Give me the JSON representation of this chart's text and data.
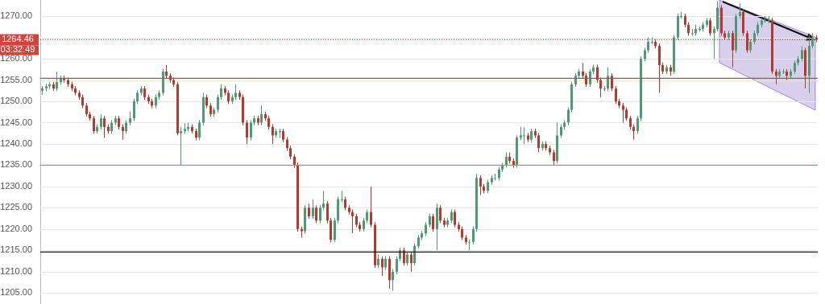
{
  "chart_data": {
    "type": "candlestick",
    "categories": [
      null,
      null,
      null,
      null,
      null,
      null,
      null,
      null,
      null,
      null,
      null,
      null,
      null,
      null,
      null,
      null,
      null,
      null,
      null,
      null,
      null,
      null,
      null,
      null,
      null,
      null,
      null,
      null,
      null,
      null,
      null,
      null,
      null,
      null,
      null,
      null,
      null,
      null,
      null,
      null,
      null,
      null,
      null,
      null,
      null,
      null,
      null,
      null,
      null,
      null,
      null,
      null,
      null,
      null,
      null,
      null,
      null,
      null,
      null,
      null,
      null,
      null,
      null,
      null,
      null,
      null,
      null,
      null,
      null,
      null,
      null,
      null,
      null,
      null,
      null,
      null,
      null,
      null,
      null,
      null,
      null,
      null,
      null,
      null,
      null,
      null,
      null,
      null,
      null,
      null,
      null,
      null,
      null,
      null,
      null,
      null,
      null,
      null,
      null,
      null,
      null,
      null,
      null,
      null,
      null,
      null,
      null,
      null,
      null,
      null,
      null,
      null,
      null,
      null,
      null,
      null,
      null,
      null,
      null,
      null,
      null,
      null,
      null,
      null,
      null,
      null,
      null,
      null,
      null,
      null,
      null,
      null,
      null,
      null,
      null,
      null,
      null,
      null,
      null,
      null,
      null,
      null,
      null,
      null,
      null,
      null,
      null,
      null,
      null,
      null,
      null,
      null,
      null,
      null,
      null,
      null,
      null,
      null,
      null,
      null,
      null,
      null,
      null,
      null,
      null,
      null,
      null,
      null,
      null,
      null,
      null,
      null,
      null,
      null,
      null,
      null,
      null,
      null,
      null,
      null,
      null,
      null,
      null,
      null,
      null,
      null,
      null,
      null,
      null,
      null,
      null,
      null,
      null,
      null,
      null,
      null,
      null,
      null,
      null,
      null,
      null,
      null,
      null,
      null,
      null,
      null,
      null,
      null,
      null,
      null,
      null,
      null,
      null
    ],
    "ohlc": [
      [
        1252.5,
        1253.6,
        1251.5,
        1253
      ],
      [
        1253,
        1254.1,
        1252.4,
        1253.5
      ],
      [
        1253.5,
        1254.6,
        1252.9,
        1254
      ],
      [
        1254,
        1254.6,
        1252.4,
        1253
      ],
      [
        1253,
        1257,
        1252.4,
        1254.5
      ],
      [
        1254.5,
        1256.1,
        1253.9,
        1255.5
      ],
      [
        1255.5,
        1256.1,
        1254.4,
        1255
      ],
      [
        1255,
        1255.6,
        1253.4,
        1254
      ],
      [
        1254,
        1254.6,
        1252.4,
        1253
      ],
      [
        1253,
        1253.6,
        1251.4,
        1252
      ],
      [
        1252,
        1252.6,
        1250.4,
        1251
      ],
      [
        1251,
        1251.6,
        1248.4,
        1249
      ],
      [
        1249,
        1249.6,
        1246.4,
        1247
      ],
      [
        1247,
        1247.6,
        1245.4,
        1246
      ],
      [
        1246,
        1246.6,
        1242.4,
        1243
      ],
      [
        1243,
        1244.6,
        1242.4,
        1244
      ],
      [
        1244,
        1247,
        1243.4,
        1246
      ],
      [
        1246,
        1246.6,
        1241.4,
        1244
      ],
      [
        1244,
        1244.6,
        1242.4,
        1243
      ],
      [
        1243,
        1245.6,
        1242.4,
        1245
      ],
      [
        1245,
        1246.6,
        1244.4,
        1246
      ],
      [
        1246,
        1246.6,
        1243.4,
        1244
      ],
      [
        1244,
        1244.6,
        1241,
        1243
      ],
      [
        1243,
        1245.6,
        1242.4,
        1245
      ],
      [
        1245,
        1247.6,
        1244.4,
        1246
      ],
      [
        1246,
        1250.6,
        1245.4,
        1250
      ],
      [
        1250,
        1252.6,
        1249.4,
        1252
      ],
      [
        1252,
        1253.6,
        1251.4,
        1253
      ],
      [
        1253,
        1253.6,
        1250.4,
        1251
      ],
      [
        1251,
        1251.6,
        1249.4,
        1250
      ],
      [
        1250,
        1250.6,
        1248.4,
        1249
      ],
      [
        1249,
        1251.6,
        1248.4,
        1251
      ],
      [
        1251,
        1252.6,
        1250.4,
        1252
      ],
      [
        1252,
        1257.6,
        1251.4,
        1257
      ],
      [
        1257,
        1258.5,
        1255.4,
        1256
      ],
      [
        1256,
        1256.6,
        1254.4,
        1255
      ],
      [
        1255,
        1255.6,
        1253.4,
        1254
      ],
      [
        1254,
        1254.6,
        1242,
        1242.5
      ],
      [
        1242.5,
        1244,
        1235,
        1243
      ],
      [
        1243,
        1244.8,
        1242.4,
        1243.5
      ],
      [
        1243.5,
        1245,
        1242.9,
        1244
      ],
      [
        1244,
        1244.6,
        1242.4,
        1243
      ],
      [
        1243,
        1243.6,
        1240.9,
        1241.5
      ],
      [
        1241.5,
        1245.6,
        1240.9,
        1245
      ],
      [
        1245,
        1252,
        1244.4,
        1251
      ],
      [
        1251,
        1251.6,
        1248.4,
        1249
      ],
      [
        1249,
        1249.6,
        1246.4,
        1247
      ],
      [
        1247,
        1248.6,
        1246.4,
        1248
      ],
      [
        1248,
        1251.6,
        1247.4,
        1251
      ],
      [
        1251,
        1254,
        1250.4,
        1253
      ],
      [
        1253,
        1253.6,
        1251.4,
        1252
      ],
      [
        1252,
        1252.6,
        1249.4,
        1250
      ],
      [
        1250,
        1251.6,
        1249.4,
        1251
      ],
      [
        1251,
        1254,
        1250.4,
        1252
      ],
      [
        1252,
        1252.6,
        1250.4,
        1251
      ],
      [
        1251,
        1251.6,
        1244.4,
        1245
      ],
      [
        1245,
        1245.6,
        1240,
        1241.5
      ],
      [
        1241.5,
        1245.6,
        1240.9,
        1245
      ],
      [
        1245,
        1246.6,
        1244.4,
        1246
      ],
      [
        1246,
        1246.6,
        1244.4,
        1245
      ],
      [
        1245,
        1249,
        1244.4,
        1247
      ],
      [
        1247,
        1247.6,
        1245.4,
        1246
      ],
      [
        1246,
        1246.6,
        1243.4,
        1244
      ],
      [
        1244,
        1244.6,
        1240,
        1242
      ],
      [
        1242,
        1243.6,
        1241.4,
        1243
      ],
      [
        1243,
        1243.6,
        1241.4,
        1243
      ],
      [
        1243,
        1243.6,
        1240.4,
        1241
      ],
      [
        1241,
        1241.6,
        1238.4,
        1239
      ],
      [
        1239,
        1239.6,
        1236.4,
        1237
      ],
      [
        1237,
        1237.6,
        1234.4,
        1235
      ],
      [
        1235,
        1235.6,
        1219.4,
        1220
      ],
      [
        1220,
        1220.6,
        1218,
        1219.5
      ],
      [
        1219.5,
        1225.6,
        1218.9,
        1225
      ],
      [
        1225,
        1226,
        1222.4,
        1223
      ],
      [
        1223,
        1227,
        1222.4,
        1225
      ],
      [
        1225,
        1225.6,
        1221.4,
        1222
      ],
      [
        1222,
        1225.6,
        1221.4,
        1225
      ],
      [
        1225,
        1229,
        1224.4,
        1226
      ],
      [
        1226,
        1226.6,
        1221.4,
        1222
      ],
      [
        1222,
        1222.6,
        1216.9,
        1217.5
      ],
      [
        1217.5,
        1222.6,
        1216.9,
        1222
      ],
      [
        1222,
        1227.6,
        1221.4,
        1227
      ],
      [
        1227,
        1229,
        1226.4,
        1227
      ],
      [
        1227,
        1227.6,
        1224.4,
        1225
      ],
      [
        1225,
        1225.6,
        1223.4,
        1224
      ],
      [
        1224,
        1224.6,
        1219,
        1223
      ],
      [
        1223,
        1223.6,
        1220.4,
        1221
      ],
      [
        1221,
        1221.6,
        1219.4,
        1220
      ],
      [
        1220,
        1222.6,
        1219.4,
        1222
      ],
      [
        1222,
        1224.6,
        1221.4,
        1224
      ],
      [
        1224,
        1230,
        1220.4,
        1221
      ],
      [
        1221,
        1221.6,
        1210.9,
        1211.5
      ],
      [
        1211.5,
        1214,
        1210.9,
        1213
      ],
      [
        1213,
        1213.6,
        1209,
        1211
      ],
      [
        1211,
        1213.6,
        1210.4,
        1213
      ],
      [
        1213,
        1213.6,
        1206,
        1208
      ],
      [
        1208,
        1210.6,
        1205.5,
        1210
      ],
      [
        1210,
        1213.6,
        1209.4,
        1213
      ],
      [
        1213,
        1215.6,
        1212.4,
        1215
      ],
      [
        1215,
        1215.6,
        1211.4,
        1212
      ],
      [
        1212,
        1214.6,
        1211.4,
        1214
      ],
      [
        1214,
        1214.6,
        1210,
        1212
      ],
      [
        1212,
        1216.6,
        1211.4,
        1216
      ],
      [
        1216,
        1218.6,
        1215.4,
        1218
      ],
      [
        1218,
        1219.6,
        1217.4,
        1219
      ],
      [
        1219,
        1221.6,
        1218.4,
        1221
      ],
      [
        1221,
        1223.6,
        1220.4,
        1223
      ],
      [
        1223,
        1223.6,
        1219.4,
        1220
      ],
      [
        1220,
        1226,
        1215,
        1225
      ],
      [
        1225,
        1225.6,
        1221.4,
        1222
      ],
      [
        1222,
        1222.6,
        1220.4,
        1221
      ],
      [
        1221,
        1222.6,
        1220.4,
        1222
      ],
      [
        1222,
        1224.6,
        1221.4,
        1224
      ],
      [
        1224,
        1224.6,
        1220.4,
        1221
      ],
      [
        1221,
        1221.6,
        1219.4,
        1220
      ],
      [
        1220,
        1220.6,
        1217.4,
        1218
      ],
      [
        1218,
        1218.6,
        1216.4,
        1217
      ],
      [
        1217,
        1217.6,
        1215,
        1217
      ],
      [
        1217,
        1220.6,
        1216.4,
        1220
      ],
      [
        1220,
        1233,
        1219.4,
        1232
      ],
      [
        1232,
        1232.6,
        1228,
        1230
      ],
      [
        1230,
        1230.6,
        1228.4,
        1229
      ],
      [
        1229,
        1231.6,
        1228.4,
        1231
      ],
      [
        1231,
        1232.6,
        1230.4,
        1232
      ],
      [
        1232,
        1233,
        1231.4,
        1232
      ],
      [
        1232,
        1234.6,
        1231.4,
        1234
      ],
      [
        1234,
        1235.6,
        1233.4,
        1235
      ],
      [
        1235,
        1238,
        1234.4,
        1237
      ],
      [
        1237,
        1238,
        1235.4,
        1236
      ],
      [
        1236,
        1236.6,
        1234.4,
        1235
      ],
      [
        1235,
        1242,
        1234.4,
        1241.5
      ],
      [
        1241.5,
        1244,
        1240.9,
        1242
      ],
      [
        1242,
        1244,
        1240,
        1242
      ],
      [
        1242,
        1242.6,
        1240.4,
        1241
      ],
      [
        1241,
        1243.6,
        1240.4,
        1243
      ],
      [
        1243,
        1243.6,
        1241.4,
        1242
      ],
      [
        1242,
        1242.6,
        1238,
        1239
      ],
      [
        1239,
        1240.6,
        1238.4,
        1240
      ],
      [
        1240,
        1240.6,
        1238.4,
        1239
      ],
      [
        1239,
        1239.6,
        1237.4,
        1238
      ],
      [
        1238,
        1238.6,
        1235,
        1236
      ],
      [
        1236,
        1245,
        1235.4,
        1242
      ],
      [
        1242,
        1244.6,
        1241.4,
        1244
      ],
      [
        1244,
        1245.6,
        1243.4,
        1245
      ],
      [
        1245,
        1248.6,
        1244.4,
        1248
      ],
      [
        1248,
        1254.6,
        1247.4,
        1254
      ],
      [
        1254,
        1256.6,
        1253.4,
        1256
      ],
      [
        1256,
        1257.6,
        1255.4,
        1257
      ],
      [
        1257,
        1259,
        1255.4,
        1256
      ],
      [
        1256,
        1256.6,
        1253.4,
        1254
      ],
      [
        1254,
        1257.6,
        1253.4,
        1257
      ],
      [
        1257,
        1258.6,
        1256.4,
        1258
      ],
      [
        1258,
        1258.6,
        1254.4,
        1255
      ],
      [
        1255,
        1255.6,
        1251,
        1253
      ],
      [
        1253,
        1253.6,
        1252.4,
        1253
      ],
      [
        1253,
        1258,
        1252.4,
        1256
      ],
      [
        1256,
        1256.6,
        1252.4,
        1253
      ],
      [
        1253,
        1253.6,
        1249.4,
        1250
      ],
      [
        1250,
        1250.6,
        1248.4,
        1249
      ],
      [
        1249,
        1249.6,
        1245,
        1248
      ],
      [
        1248,
        1248.6,
        1245.4,
        1246
      ],
      [
        1246,
        1246.6,
        1243.4,
        1244
      ],
      [
        1244,
        1244.6,
        1241,
        1243
      ],
      [
        1243,
        1246.6,
        1242.4,
        1246
      ],
      [
        1246,
        1260.6,
        1245.4,
        1260
      ],
      [
        1260,
        1262.6,
        1259.4,
        1262
      ],
      [
        1262,
        1265,
        1261.4,
        1264
      ],
      [
        1264,
        1265,
        1263.4,
        1264
      ],
      [
        1264,
        1264.6,
        1262.4,
        1263
      ],
      [
        1263,
        1263.6,
        1252,
        1258.5
      ],
      [
        1258.5,
        1259.1,
        1256.4,
        1257
      ],
      [
        1257,
        1258.6,
        1256.4,
        1258
      ],
      [
        1258,
        1258.6,
        1256,
        1257
      ],
      [
        1257,
        1265.6,
        1256.4,
        1265
      ],
      [
        1265,
        1270.6,
        1264.4,
        1270
      ],
      [
        1270,
        1271,
        1269.4,
        1270
      ],
      [
        1270,
        1270.6,
        1267.4,
        1268
      ],
      [
        1268,
        1268.6,
        1265.4,
        1266
      ],
      [
        1266,
        1267,
        1265.4,
        1266
      ],
      [
        1266,
        1268,
        1265.4,
        1267
      ],
      [
        1267,
        1267.6,
        1266.4,
        1267
      ],
      [
        1267,
        1268.6,
        1266.4,
        1268
      ],
      [
        1268,
        1269.6,
        1267.4,
        1269
      ],
      [
        1269,
        1269.6,
        1265.4,
        1266
      ],
      [
        1266,
        1267.6,
        1260,
        1267
      ],
      [
        1267,
        1273.5,
        1266.4,
        1272
      ],
      [
        1272,
        1272.6,
        1265.4,
        1266
      ],
      [
        1266,
        1266.6,
        1264.4,
        1265
      ],
      [
        1265,
        1266.6,
        1264.4,
        1266
      ],
      [
        1266,
        1266.6,
        1258,
        1262
      ],
      [
        1262,
        1270.6,
        1261.4,
        1270
      ],
      [
        1270,
        1273,
        1269.4,
        1271
      ],
      [
        1271,
        1271.6,
        1265.4,
        1266
      ],
      [
        1266,
        1266.6,
        1261.4,
        1262
      ],
      [
        1262,
        1264.6,
        1261.4,
        1264
      ],
      [
        1264,
        1266.6,
        1263.4,
        1266
      ],
      [
        1266,
        1268.6,
        1265.4,
        1268
      ],
      [
        1268,
        1269.6,
        1267.4,
        1269
      ],
      [
        1269,
        1270,
        1268.4,
        1269
      ],
      [
        1269,
        1270,
        1268.4,
        1269
      ],
      [
        1269,
        1269.6,
        1256.4,
        1257
      ],
      [
        1257,
        1257.6,
        1254,
        1256
      ],
      [
        1256,
        1257.6,
        1255.4,
        1257
      ],
      [
        1257,
        1257.6,
        1256.4,
        1257
      ],
      [
        1257,
        1257.6,
        1255,
        1256
      ],
      [
        1256,
        1257.6,
        1255.4,
        1257
      ],
      [
        1257,
        1259.6,
        1256.4,
        1259
      ],
      [
        1259,
        1260.6,
        1258.4,
        1260
      ],
      [
        1260,
        1263,
        1259.4,
        1262
      ],
      [
        1262,
        1262.6,
        1253,
        1256
      ],
      [
        1256,
        1265.6,
        1252,
        1263
      ],
      [
        1263,
        1266,
        1262.4,
        1265
      ],
      [
        1265,
        1265.6,
        1263.9,
        1264.46
      ]
    ],
    "ylim": [
      1202.4,
      1273.8
    ],
    "yticks": [
      {
        "value": 1205,
        "label": "1205.00"
      },
      {
        "value": 1210,
        "label": "1210.00"
      },
      {
        "value": 1215,
        "label": "1215.00"
      },
      {
        "value": 1220,
        "label": "1220.00"
      },
      {
        "value": 1225,
        "label": "1225.00"
      },
      {
        "value": 1230,
        "label": "1230.00"
      },
      {
        "value": 1235,
        "label": "1235.00"
      },
      {
        "value": 1240,
        "label": "1240.00"
      },
      {
        "value": 1245,
        "label": "1245.00"
      },
      {
        "value": 1250,
        "label": "1250.00"
      },
      {
        "value": 1255,
        "label": "1255.00"
      },
      {
        "value": 1260,
        "label": "1260.00"
      },
      {
        "value": 1265,
        "label": null
      },
      {
        "value": 1270,
        "label": "1270.00"
      }
    ],
    "ref_lines": [
      {
        "axis": "y",
        "value": 1255.4,
        "color": "#d0453b"
      },
      {
        "axis": "y",
        "value": 1235,
        "color": "#5cbf5c"
      },
      {
        "axis": "y",
        "value": 1214.6,
        "color": "#1a1a1a"
      },
      {
        "axis": "y",
        "value": 1264.46,
        "label": "1264.46",
        "color": "#d0453b",
        "line_style": "dotted"
      }
    ],
    "annotations": [
      "03:32:49"
    ],
    "tick_labels": "y",
    "grid": "y",
    "legend": false
  }
}
